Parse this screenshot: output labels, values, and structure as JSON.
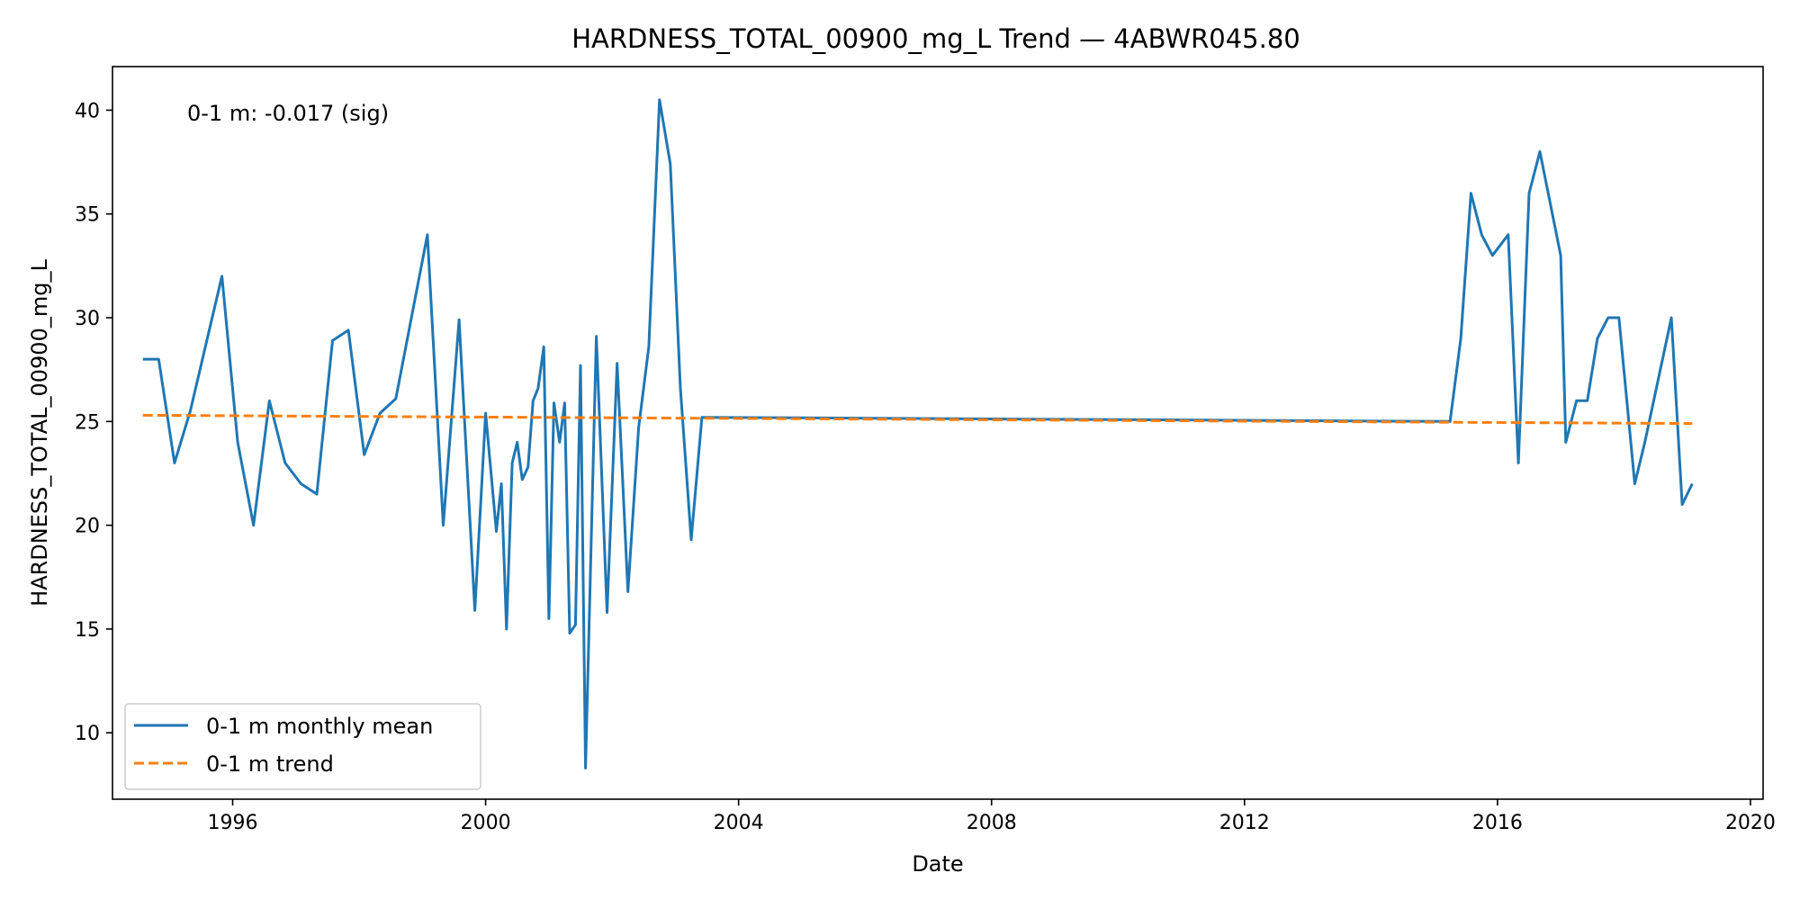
{
  "chart_data": {
    "type": "line",
    "title": "HARDNESS_TOTAL_00900_mg_L Trend — 4ABWR045.80",
    "xlabel": "Date",
    "ylabel": "HARDNESS_TOTAL_00900_mg_L",
    "xlim": [
      1994.1,
      2020.2
    ],
    "ylim": [
      6.8,
      42.1
    ],
    "x_ticks": [
      1996,
      2000,
      2004,
      2008,
      2012,
      2016,
      2020
    ],
    "y_ticks": [
      10,
      15,
      20,
      25,
      30,
      35,
      40
    ],
    "grid": false,
    "legend_position": "lower-left",
    "annotation": "0-1 m: -0.017 (sig)",
    "series": [
      {
        "name": "0-1 m monthly mean",
        "color": "#1f77b4",
        "style": "solid",
        "x": [
          1994.58,
          1994.83,
          1995.08,
          1995.33,
          1995.83,
          1996.08,
          1996.33,
          1996.58,
          1996.83,
          1997.08,
          1997.33,
          1997.58,
          1997.83,
          1998.08,
          1998.33,
          1998.58,
          1999.08,
          1999.33,
          1999.58,
          1999.83,
          2000.0,
          2000.17,
          2000.25,
          2000.33,
          2000.42,
          2000.5,
          2000.58,
          2000.67,
          2000.75,
          2000.83,
          2000.92,
          2001.0,
          2001.08,
          2001.17,
          2001.25,
          2001.33,
          2001.42,
          2001.5,
          2001.58,
          2001.75,
          2001.92,
          2002.08,
          2002.25,
          2002.42,
          2002.58,
          2002.75,
          2002.92,
          2003.08,
          2003.25,
          2003.42,
          2015.25,
          2015.42,
          2015.58,
          2015.75,
          2015.92,
          2016.17,
          2016.33,
          2016.5,
          2016.67,
          2017.0,
          2017.08,
          2017.25,
          2017.42,
          2017.58,
          2017.75,
          2017.92,
          2018.17,
          2018.33,
          2018.75,
          2018.92,
          2019.08
        ],
        "y": [
          28,
          28,
          23,
          25.5,
          32,
          24,
          20,
          26,
          23,
          22,
          21.5,
          28.9,
          29.4,
          23.4,
          25.4,
          26.1,
          34,
          20,
          29.9,
          15.9,
          25.4,
          19.7,
          22,
          15,
          23,
          24,
          22.2,
          22.8,
          26,
          26.6,
          28.6,
          15.5,
          25.9,
          24,
          25.9,
          14.8,
          15.2,
          27.7,
          8.3,
          29.1,
          15.8,
          27.8,
          16.8,
          24.7,
          28.6,
          40.5,
          37.4,
          26.6,
          19.3,
          25.2,
          25,
          29,
          36,
          34,
          33,
          34,
          23,
          36,
          38,
          33,
          24,
          26,
          26,
          29,
          30,
          30,
          22,
          24,
          30,
          21,
          22
        ]
      },
      {
        "name": "0-1 m trend",
        "color": "#ff7f0e",
        "style": "dashed",
        "x": [
          1994.58,
          2019.08
        ],
        "y": [
          25.3,
          24.9
        ]
      }
    ]
  }
}
